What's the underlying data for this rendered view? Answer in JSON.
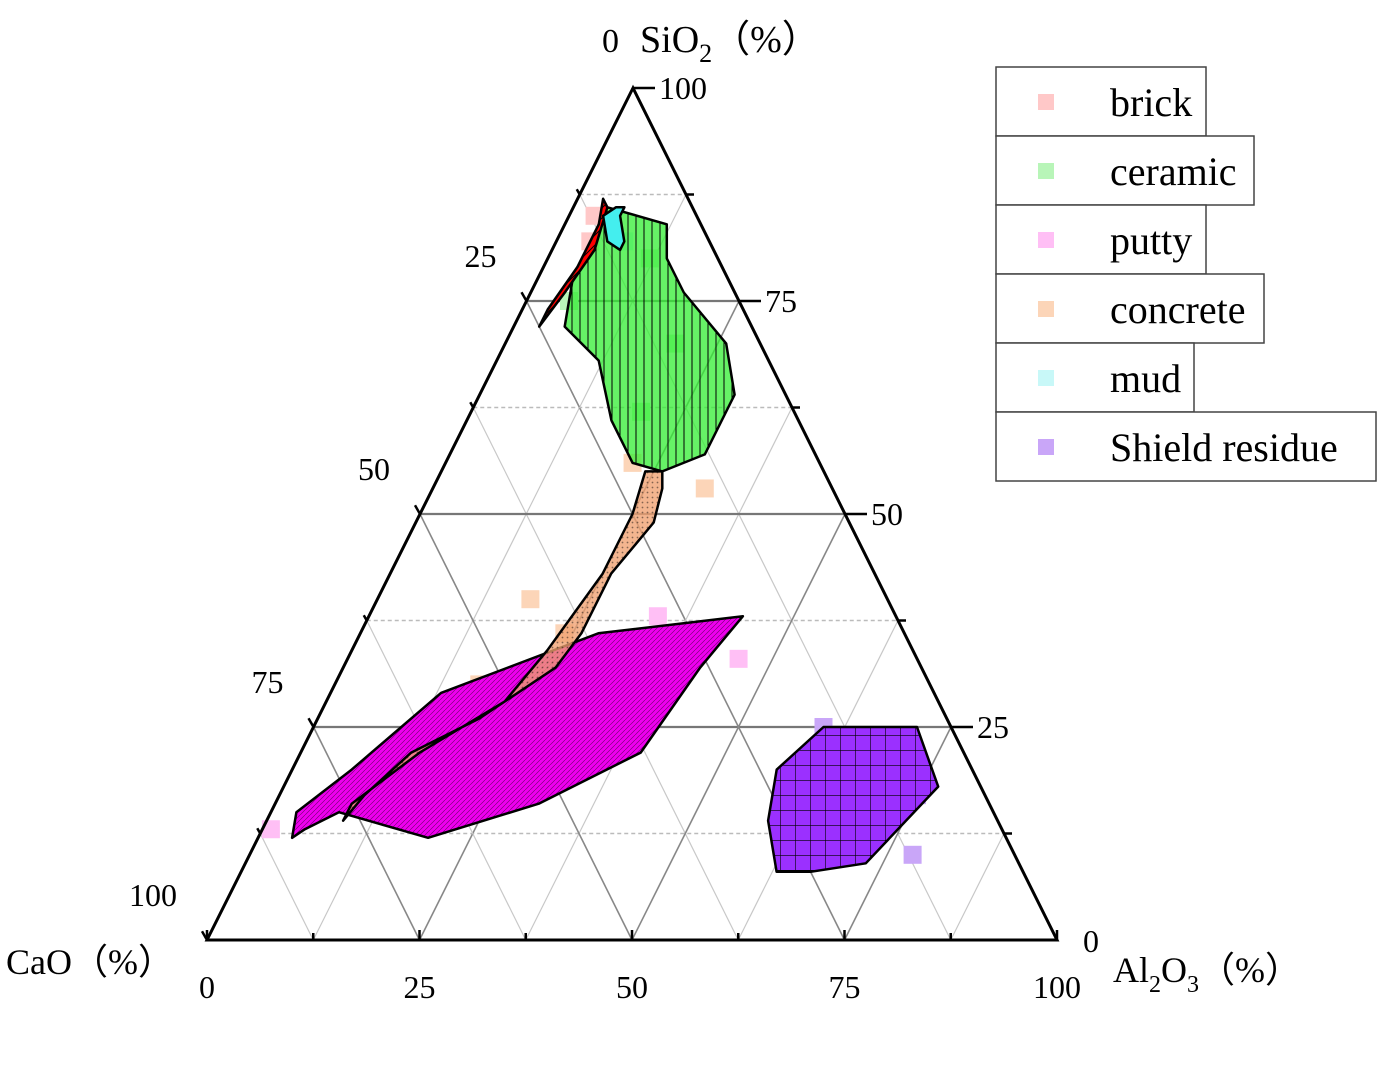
{
  "chart_data": {
    "type": "ternary",
    "axes": {
      "top": {
        "label_prefix": "SiO",
        "label_sub": "2",
        "label_suffix": "（%）",
        "zero_label": "0"
      },
      "left": {
        "label": "CaO（%）"
      },
      "right": {
        "label_prefix": "Al",
        "label_sub1": "2",
        "label_mid": "O",
        "label_sub2": "3",
        "label_suffix": "（%）",
        "zero_label": "0"
      }
    },
    "ticks": {
      "bottom": [
        "0",
        "25",
        "50",
        "75",
        "100"
      ],
      "right": [
        "25",
        "50",
        "75",
        "100"
      ],
      "left": [
        "25",
        "50",
        "75",
        "100"
      ]
    },
    "grid": true,
    "legend_position": "top-right",
    "series": [
      {
        "name": "brick",
        "color": "#ff0000",
        "marker_color": "#ffc8c8",
        "pattern": "diagonal",
        "region": [
          [
            0.87,
            0.1,
            0.03
          ],
          [
            0.84,
            0.12,
            0.04
          ],
          [
            0.79,
            0.17,
            0.04
          ],
          [
            0.74,
            0.23,
            0.03
          ],
          [
            0.72,
            0.25,
            0.03
          ],
          [
            0.76,
            0.2,
            0.04
          ],
          [
            0.81,
            0.14,
            0.05
          ],
          [
            0.86,
            0.1,
            0.04
          ]
        ],
        "markers": [
          [
            0.82,
            0.14,
            0.04
          ],
          [
            0.85,
            0.12,
            0.03
          ]
        ]
      },
      {
        "name": "ceramic",
        "color": "#33ee33",
        "marker_color": "#b8f5b8",
        "pattern": "vertical",
        "region": [
          [
            0.84,
            0.04,
            0.12
          ],
          [
            0.8,
            0.06,
            0.14
          ],
          [
            0.76,
            0.06,
            0.18
          ],
          [
            0.7,
            0.04,
            0.26
          ],
          [
            0.64,
            0.06,
            0.3
          ],
          [
            0.57,
            0.13,
            0.3
          ],
          [
            0.55,
            0.19,
            0.26
          ],
          [
            0.56,
            0.22,
            0.22
          ],
          [
            0.61,
            0.22,
            0.17
          ],
          [
            0.68,
            0.2,
            0.12
          ],
          [
            0.72,
            0.22,
            0.06
          ],
          [
            0.78,
            0.18,
            0.04
          ],
          [
            0.82,
            0.14,
            0.04
          ],
          [
            0.86,
            0.1,
            0.04
          ]
        ],
        "markers": [
          [
            0.8,
            0.08,
            0.12
          ],
          [
            0.7,
            0.1,
            0.2
          ],
          [
            0.62,
            0.18,
            0.2
          ],
          [
            0.75,
            0.2,
            0.05
          ]
        ]
      },
      {
        "name": "putty",
        "color": "#ee00ee",
        "marker_color": "#ffbff5",
        "pattern": "fine",
        "region": [
          [
            0.38,
            0.18,
            0.44
          ],
          [
            0.32,
            0.26,
            0.42
          ],
          [
            0.22,
            0.38,
            0.4
          ],
          [
            0.16,
            0.53,
            0.31
          ],
          [
            0.12,
            0.68,
            0.2
          ],
          [
            0.15,
            0.77,
            0.08
          ],
          [
            0.13,
            0.82,
            0.05
          ],
          [
            0.12,
            0.84,
            0.04
          ],
          [
            0.15,
            0.82,
            0.03
          ],
          [
            0.2,
            0.73,
            0.07
          ],
          [
            0.29,
            0.58,
            0.13
          ],
          [
            0.36,
            0.36,
            0.28
          ]
        ],
        "markers": [
          [
            0.13,
            0.86,
            0.01
          ],
          [
            0.16,
            0.69,
            0.15
          ],
          [
            0.3,
            0.46,
            0.24
          ],
          [
            0.38,
            0.28,
            0.34
          ],
          [
            0.33,
            0.21,
            0.46
          ]
        ]
      },
      {
        "name": "concrete",
        "color": "#f0a070",
        "marker_color": "#fcd5b8",
        "pattern": "dots",
        "region": [
          [
            0.55,
            0.19,
            0.26
          ],
          [
            0.53,
            0.2,
            0.27
          ],
          [
            0.49,
            0.23,
            0.28
          ],
          [
            0.43,
            0.31,
            0.26
          ],
          [
            0.36,
            0.38,
            0.26
          ],
          [
            0.32,
            0.43,
            0.25
          ],
          [
            0.26,
            0.55,
            0.19
          ],
          [
            0.22,
            0.65,
            0.13
          ],
          [
            0.17,
            0.73,
            0.1
          ],
          [
            0.14,
            0.77,
            0.09
          ],
          [
            0.16,
            0.75,
            0.09
          ],
          [
            0.22,
            0.64,
            0.14
          ],
          [
            0.28,
            0.51,
            0.21
          ],
          [
            0.34,
            0.43,
            0.23
          ],
          [
            0.43,
            0.32,
            0.25
          ],
          [
            0.5,
            0.25,
            0.25
          ],
          [
            0.55,
            0.21,
            0.24
          ]
        ],
        "markers": [
          [
            0.56,
            0.22,
            0.22
          ],
          [
            0.53,
            0.15,
            0.32
          ],
          [
            0.4,
            0.42,
            0.18
          ],
          [
            0.3,
            0.53,
            0.17
          ],
          [
            0.36,
            0.4,
            0.24
          ]
        ]
      },
      {
        "name": "mud",
        "color": "#44eeee",
        "marker_color": "#c8f8f8",
        "pattern": "none",
        "region": [
          [
            0.86,
            0.08,
            0.06
          ],
          [
            0.85,
            0.09,
            0.06
          ],
          [
            0.82,
            0.1,
            0.08
          ],
          [
            0.81,
            0.11,
            0.08
          ],
          [
            0.82,
            0.12,
            0.06
          ],
          [
            0.85,
            0.11,
            0.04
          ],
          [
            0.86,
            0.09,
            0.05
          ]
        ],
        "markers": [
          [
            0.82,
            0.1,
            0.08
          ]
        ]
      },
      {
        "name": "Shield residue",
        "color": "#9b30ff",
        "marker_color": "#c9a6f8",
        "pattern": "grid",
        "region": [
          [
            0.25,
            0.04,
            0.71
          ],
          [
            0.25,
            0.15,
            0.6
          ],
          [
            0.2,
            0.23,
            0.57
          ],
          [
            0.14,
            0.27,
            0.59
          ],
          [
            0.08,
            0.29,
            0.63
          ],
          [
            0.08,
            0.25,
            0.67
          ],
          [
            0.09,
            0.18,
            0.73
          ],
          [
            0.18,
            0.05,
            0.77
          ]
        ],
        "markers": [
          [
            0.25,
            0.15,
            0.6
          ],
          [
            0.17,
            0.08,
            0.75
          ],
          [
            0.1,
            0.12,
            0.78
          ]
        ]
      }
    ]
  }
}
